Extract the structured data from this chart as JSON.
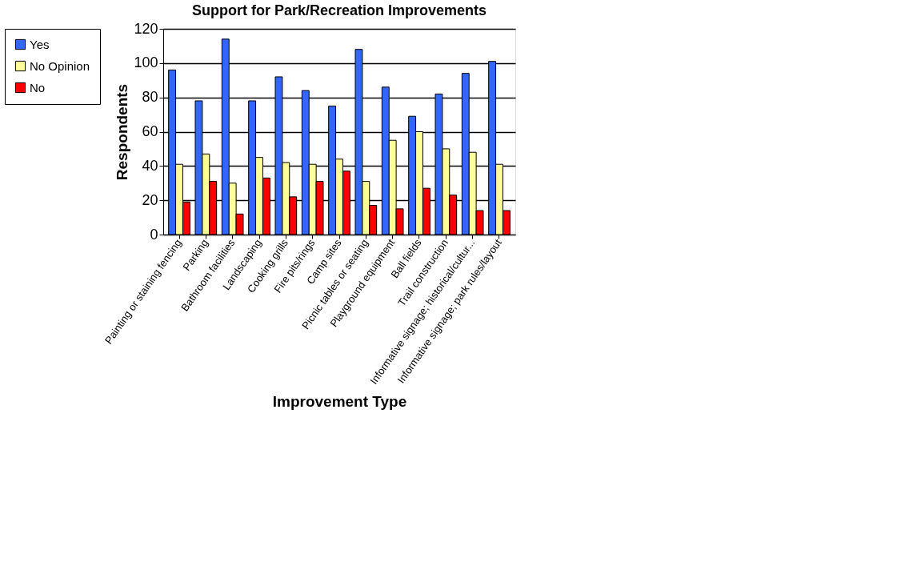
{
  "chart_data": {
    "type": "bar",
    "title": "Support for Park/Recreation Improvements",
    "xlabel": "Improvement Type",
    "ylabel": "Respondents",
    "categories": [
      "Painting or staining fencing",
      "Parking",
      "Bathroom facilities",
      "Landscaping",
      "Cooking grills",
      "Fire pits/rings",
      "Camp sites",
      "Picnic tables or seating",
      "Playground equipment",
      "Ball fields",
      "Trail construction",
      "Informative signage; historical/cultur...",
      "Informative signage; park rules/layout"
    ],
    "series": [
      {
        "name": "Yes",
        "color": "#3366ff",
        "values": [
          96,
          78,
          114,
          78,
          92,
          84,
          75,
          108,
          86,
          69,
          82,
          94,
          101
        ]
      },
      {
        "name": "No Opinion",
        "color": "#ffff99",
        "values": [
          41,
          47,
          30,
          45,
          42,
          41,
          44,
          31,
          55,
          60,
          50,
          48,
          41
        ]
      },
      {
        "name": "No",
        "color": "#ff0000",
        "values": [
          19,
          31,
          12,
          33,
          22,
          31,
          37,
          17,
          15,
          27,
          23,
          14,
          14
        ]
      }
    ],
    "ylim": [
      0,
      120
    ],
    "yticks": [
      0,
      20,
      40,
      60,
      80,
      100,
      120
    ],
    "grid": "y",
    "legend": "left"
  }
}
